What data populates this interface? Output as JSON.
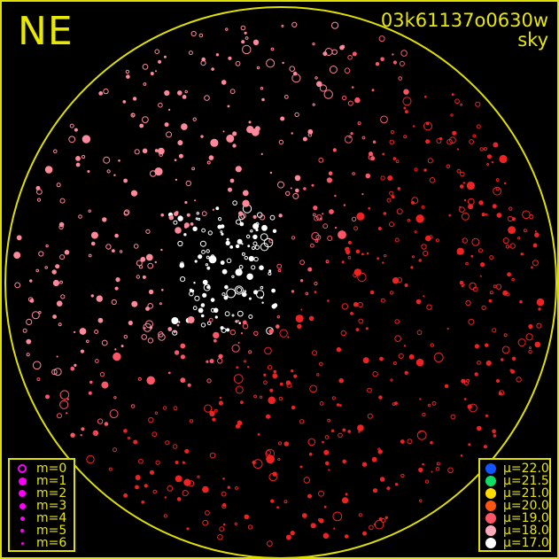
{
  "header": {
    "direction": "NE",
    "observation_id": "03k61137o0630w",
    "subtitle": "sky"
  },
  "colors": {
    "frame": "#e0e000",
    "background": "#000000"
  },
  "magnitude_legend": [
    {
      "label": "m=0",
      "style": "ring"
    },
    {
      "label": "m=1",
      "style": "filled"
    },
    {
      "label": "m=2",
      "style": "filled"
    },
    {
      "label": "m=3",
      "style": "filled"
    },
    {
      "label": "m=4",
      "style": "filled"
    },
    {
      "label": "m=5",
      "style": "filled"
    },
    {
      "label": "m=6",
      "style": "filled"
    }
  ],
  "magnitude_legend_color": "#ff00ff",
  "sky_brightness_legend": [
    {
      "label": "μ=22.0",
      "color": "#1155ff"
    },
    {
      "label": "μ=21.5",
      "color": "#11dd66"
    },
    {
      "label": "μ=21.0",
      "color": "#ffdd00"
    },
    {
      "label": "μ=20.0",
      "color": "#ff5511"
    },
    {
      "label": "μ=19.0",
      "color": "#ff5566"
    },
    {
      "label": "μ=18.0",
      "color": "#ffaabb"
    },
    {
      "label": "μ=17.0",
      "color": "#ffffff"
    }
  ]
}
